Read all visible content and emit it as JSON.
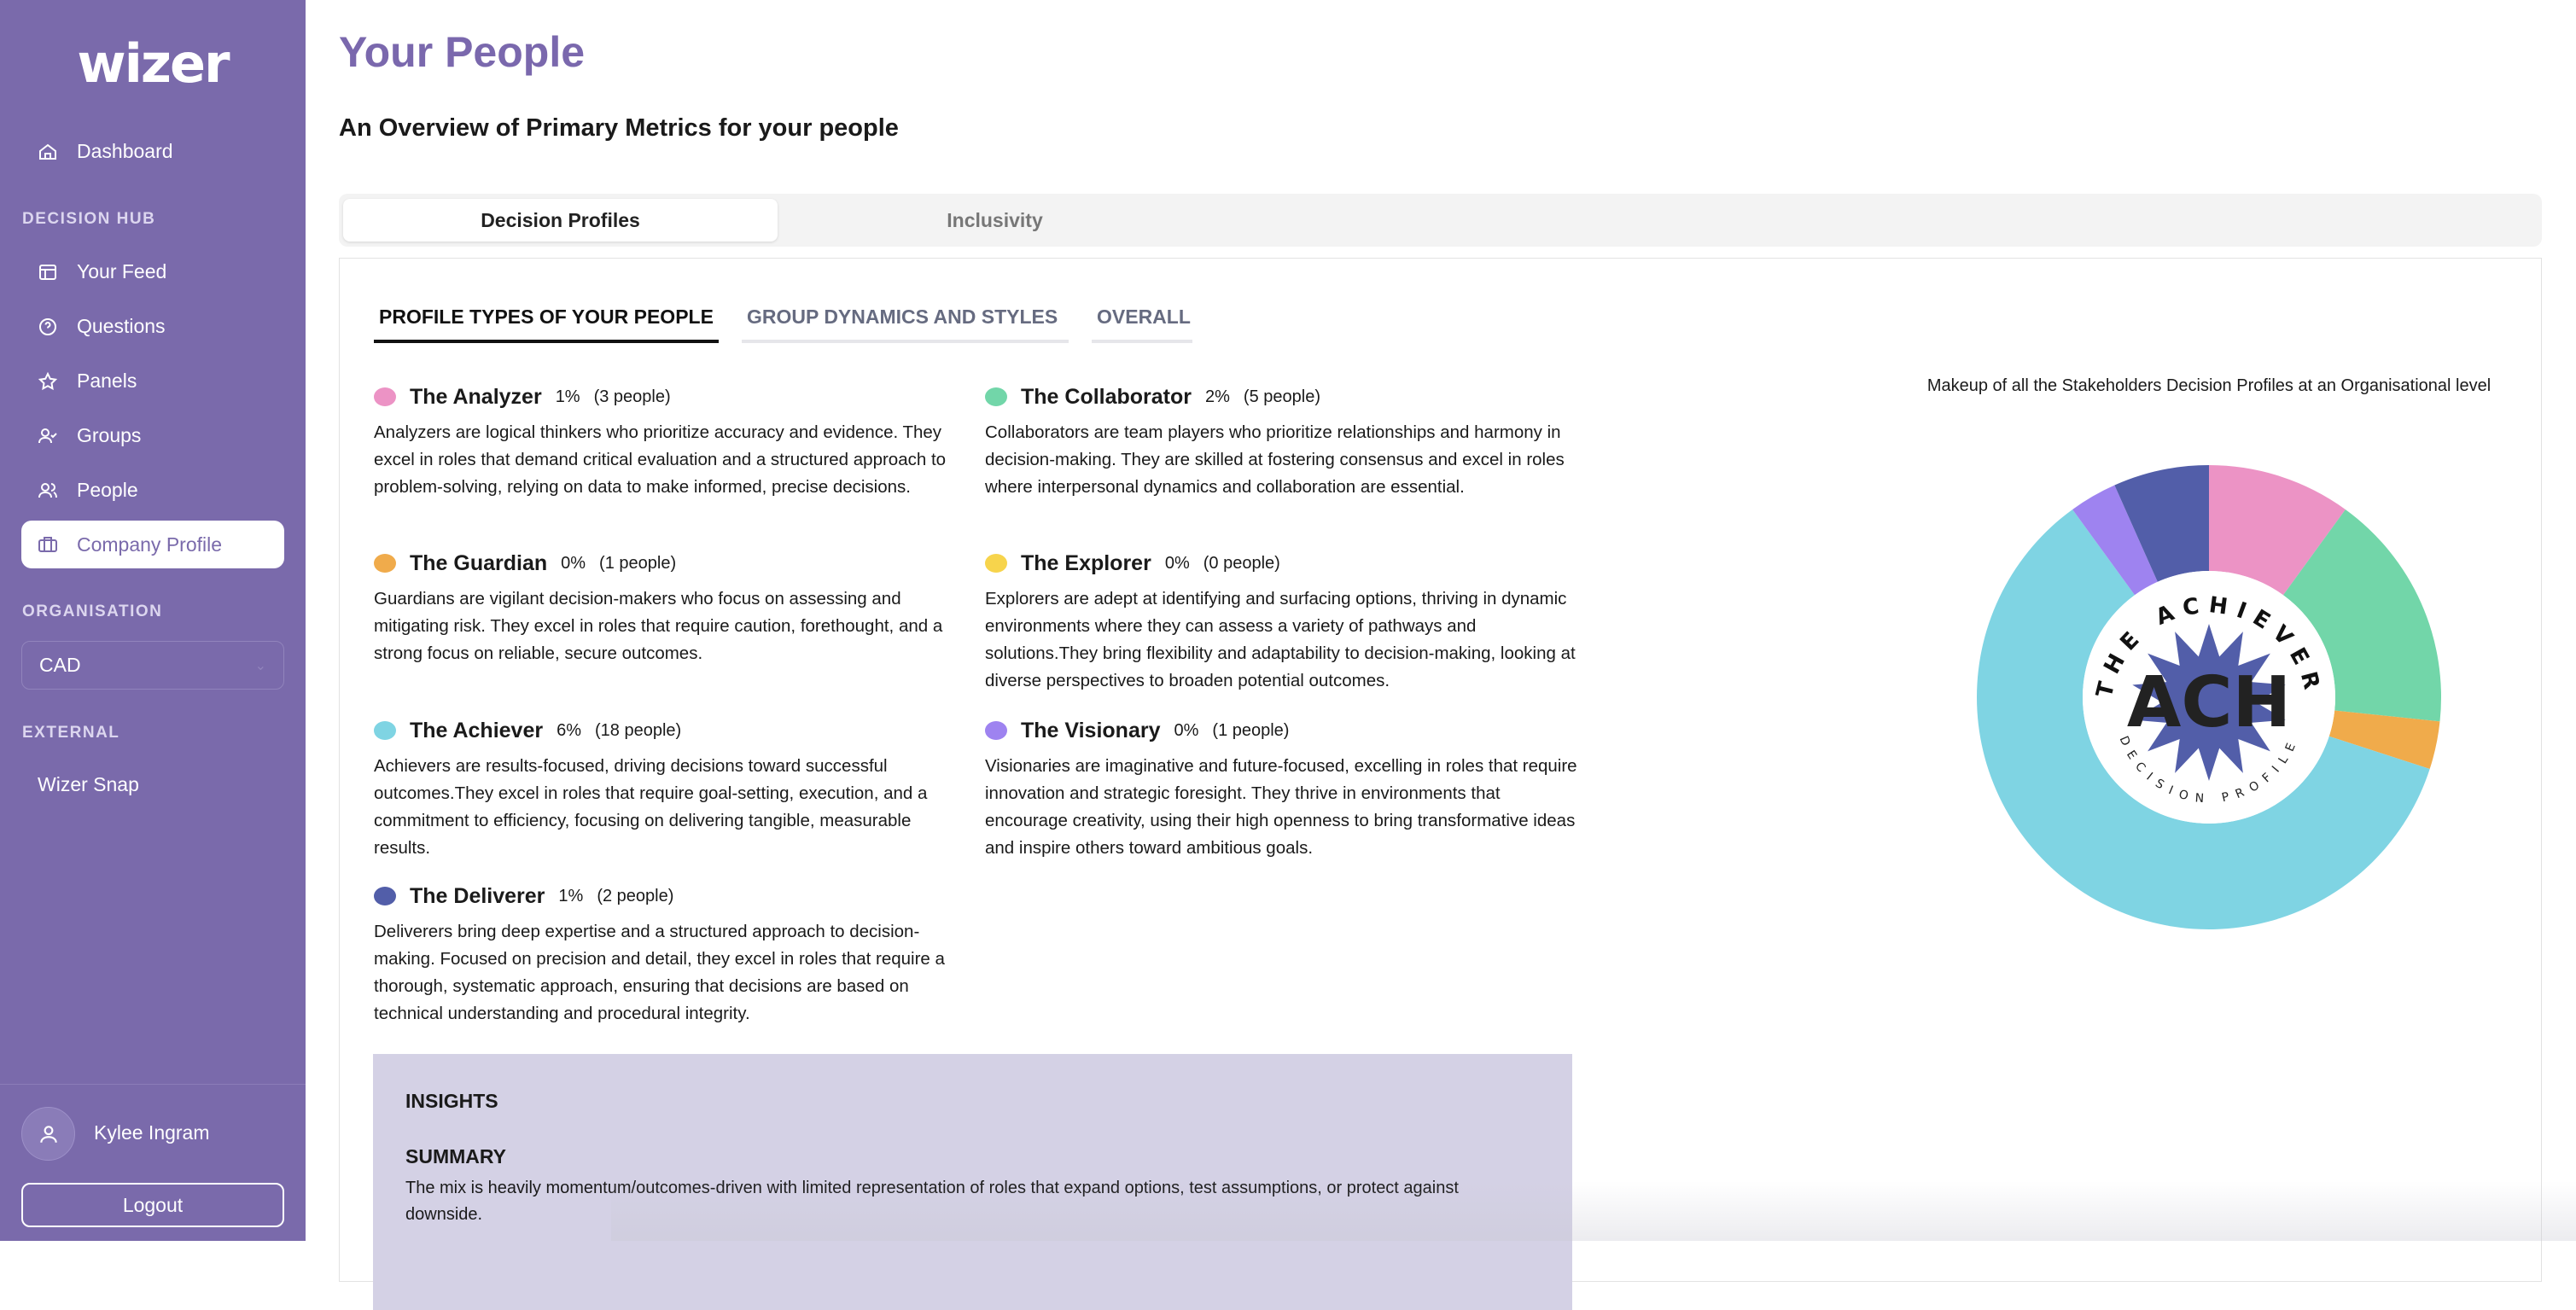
{
  "sidebar": {
    "logo": "wizer",
    "dashboard": "Dashboard",
    "section_decision_hub": "DECISION HUB",
    "items": [
      {
        "label": "Your Feed",
        "icon": "layout-icon"
      },
      {
        "label": "Questions",
        "icon": "question-icon"
      },
      {
        "label": "Panels",
        "icon": "star-icon"
      },
      {
        "label": "Groups",
        "icon": "user-check-icon"
      },
      {
        "label": "People",
        "icon": "users-icon"
      },
      {
        "label": "Company Profile",
        "icon": "briefcase-icon",
        "active": true
      }
    ],
    "section_organisation": "ORGANISATION",
    "organisation_value": "CAD",
    "section_external": "EXTERNAL",
    "external_link": "Wizer Snap",
    "user_name": "Kylee Ingram",
    "logout": "Logout",
    "color": "#7a6aab"
  },
  "header": {
    "title": "Your People",
    "subtitle": "An Overview of Primary Metrics for your people"
  },
  "tabs": [
    "Decision Profiles",
    "Inclusivity"
  ],
  "subtabs": [
    "PROFILE TYPES OF YOUR PEOPLE",
    "GROUP DYNAMICS AND STYLES",
    "OVERALL"
  ],
  "profiles": [
    {
      "name": "The Analyzer",
      "pct": "1%",
      "count": "(3 people)",
      "color": "#ec93c5",
      "desc": "Analyzers are logical thinkers who prioritize accuracy and evidence. They excel in roles that demand critical evaluation and a structured approach to problem-solving, relying on data to make informed, precise decisions."
    },
    {
      "name": "The Collaborator",
      "pct": "2%",
      "count": "(5 people)",
      "color": "#72d6a9",
      "desc": "Collaborators are team players who prioritize relationships and harmony in decision-making. They are skilled at fostering consensus and excel in roles where interpersonal dynamics and collaboration are essential."
    },
    {
      "name": "The Guardian",
      "pct": "0%",
      "count": "(1 people)",
      "color": "#f0ab4b",
      "desc": "Guardians are vigilant decision-makers who focus on assessing and mitigating risk. They excel in roles that require caution, forethought, and a strong focus on reliable, secure outcomes."
    },
    {
      "name": "The Explorer",
      "pct": "0%",
      "count": "(0 people)",
      "color": "#f7d44c",
      "desc": "Explorers are adept at identifying and surfacing options, thriving in dynamic environments where they can assess a variety of pathways and solutions.They bring flexibility and adaptability to decision-making, looking at diverse perspectives to broaden potential outcomes."
    },
    {
      "name": "The Achiever",
      "pct": "6%",
      "count": "(18 people)",
      "color": "#7fd4e3",
      "desc": "Achievers are results-focused, driving decisions toward successful outcomes.They excel in roles that require goal-setting, execution, and a commitment to efficiency, focusing on delivering tangible, measurable results."
    },
    {
      "name": "The Visionary",
      "pct": "0%",
      "count": "(1 people)",
      "color": "#9e83f0",
      "desc": "Visionaries are imaginative and future-focused, excelling in roles that require innovation and strategic foresight. They thrive in environments that encourage creativity, using their high openness to bring transformative ideas and inspire others toward ambitious goals."
    },
    {
      "name": "The Deliverer",
      "pct": "1%",
      "count": "(2 people)",
      "color": "#525ea9",
      "desc": "Deliverers bring deep expertise and a structured approach to decision-making. Focused on precision and detail, they excel in roles that require a thorough, systematic approach, ensuring that decisions are based on technical understanding and procedural integrity."
    }
  ],
  "chart_data": {
    "type": "pie",
    "variant": "donut",
    "title": "Makeup of all the Stakeholders Decision Profiles at an Organisational level",
    "categories": [
      "The Analyzer",
      "The Collaborator",
      "The Guardian",
      "The Achiever",
      "The Visionary",
      "The Deliverer"
    ],
    "values": [
      3,
      5,
      1,
      18,
      1,
      2
    ],
    "colors": [
      "#ec93c5",
      "#72d6a9",
      "#f0ab4b",
      "#7fd4e3",
      "#9e83f0",
      "#525ea9"
    ],
    "center_badge": {
      "top": "THE ACHIEVER",
      "middle": "ACH",
      "bottom": "DECISION PROFILE"
    }
  },
  "insights": {
    "heading": "INSIGHTS",
    "summary_heading": "SUMMARY",
    "summary": "The mix is heavily momentum/outcomes-driven with limited representation of roles that expand options, test assumptions, or protect against downside."
  }
}
